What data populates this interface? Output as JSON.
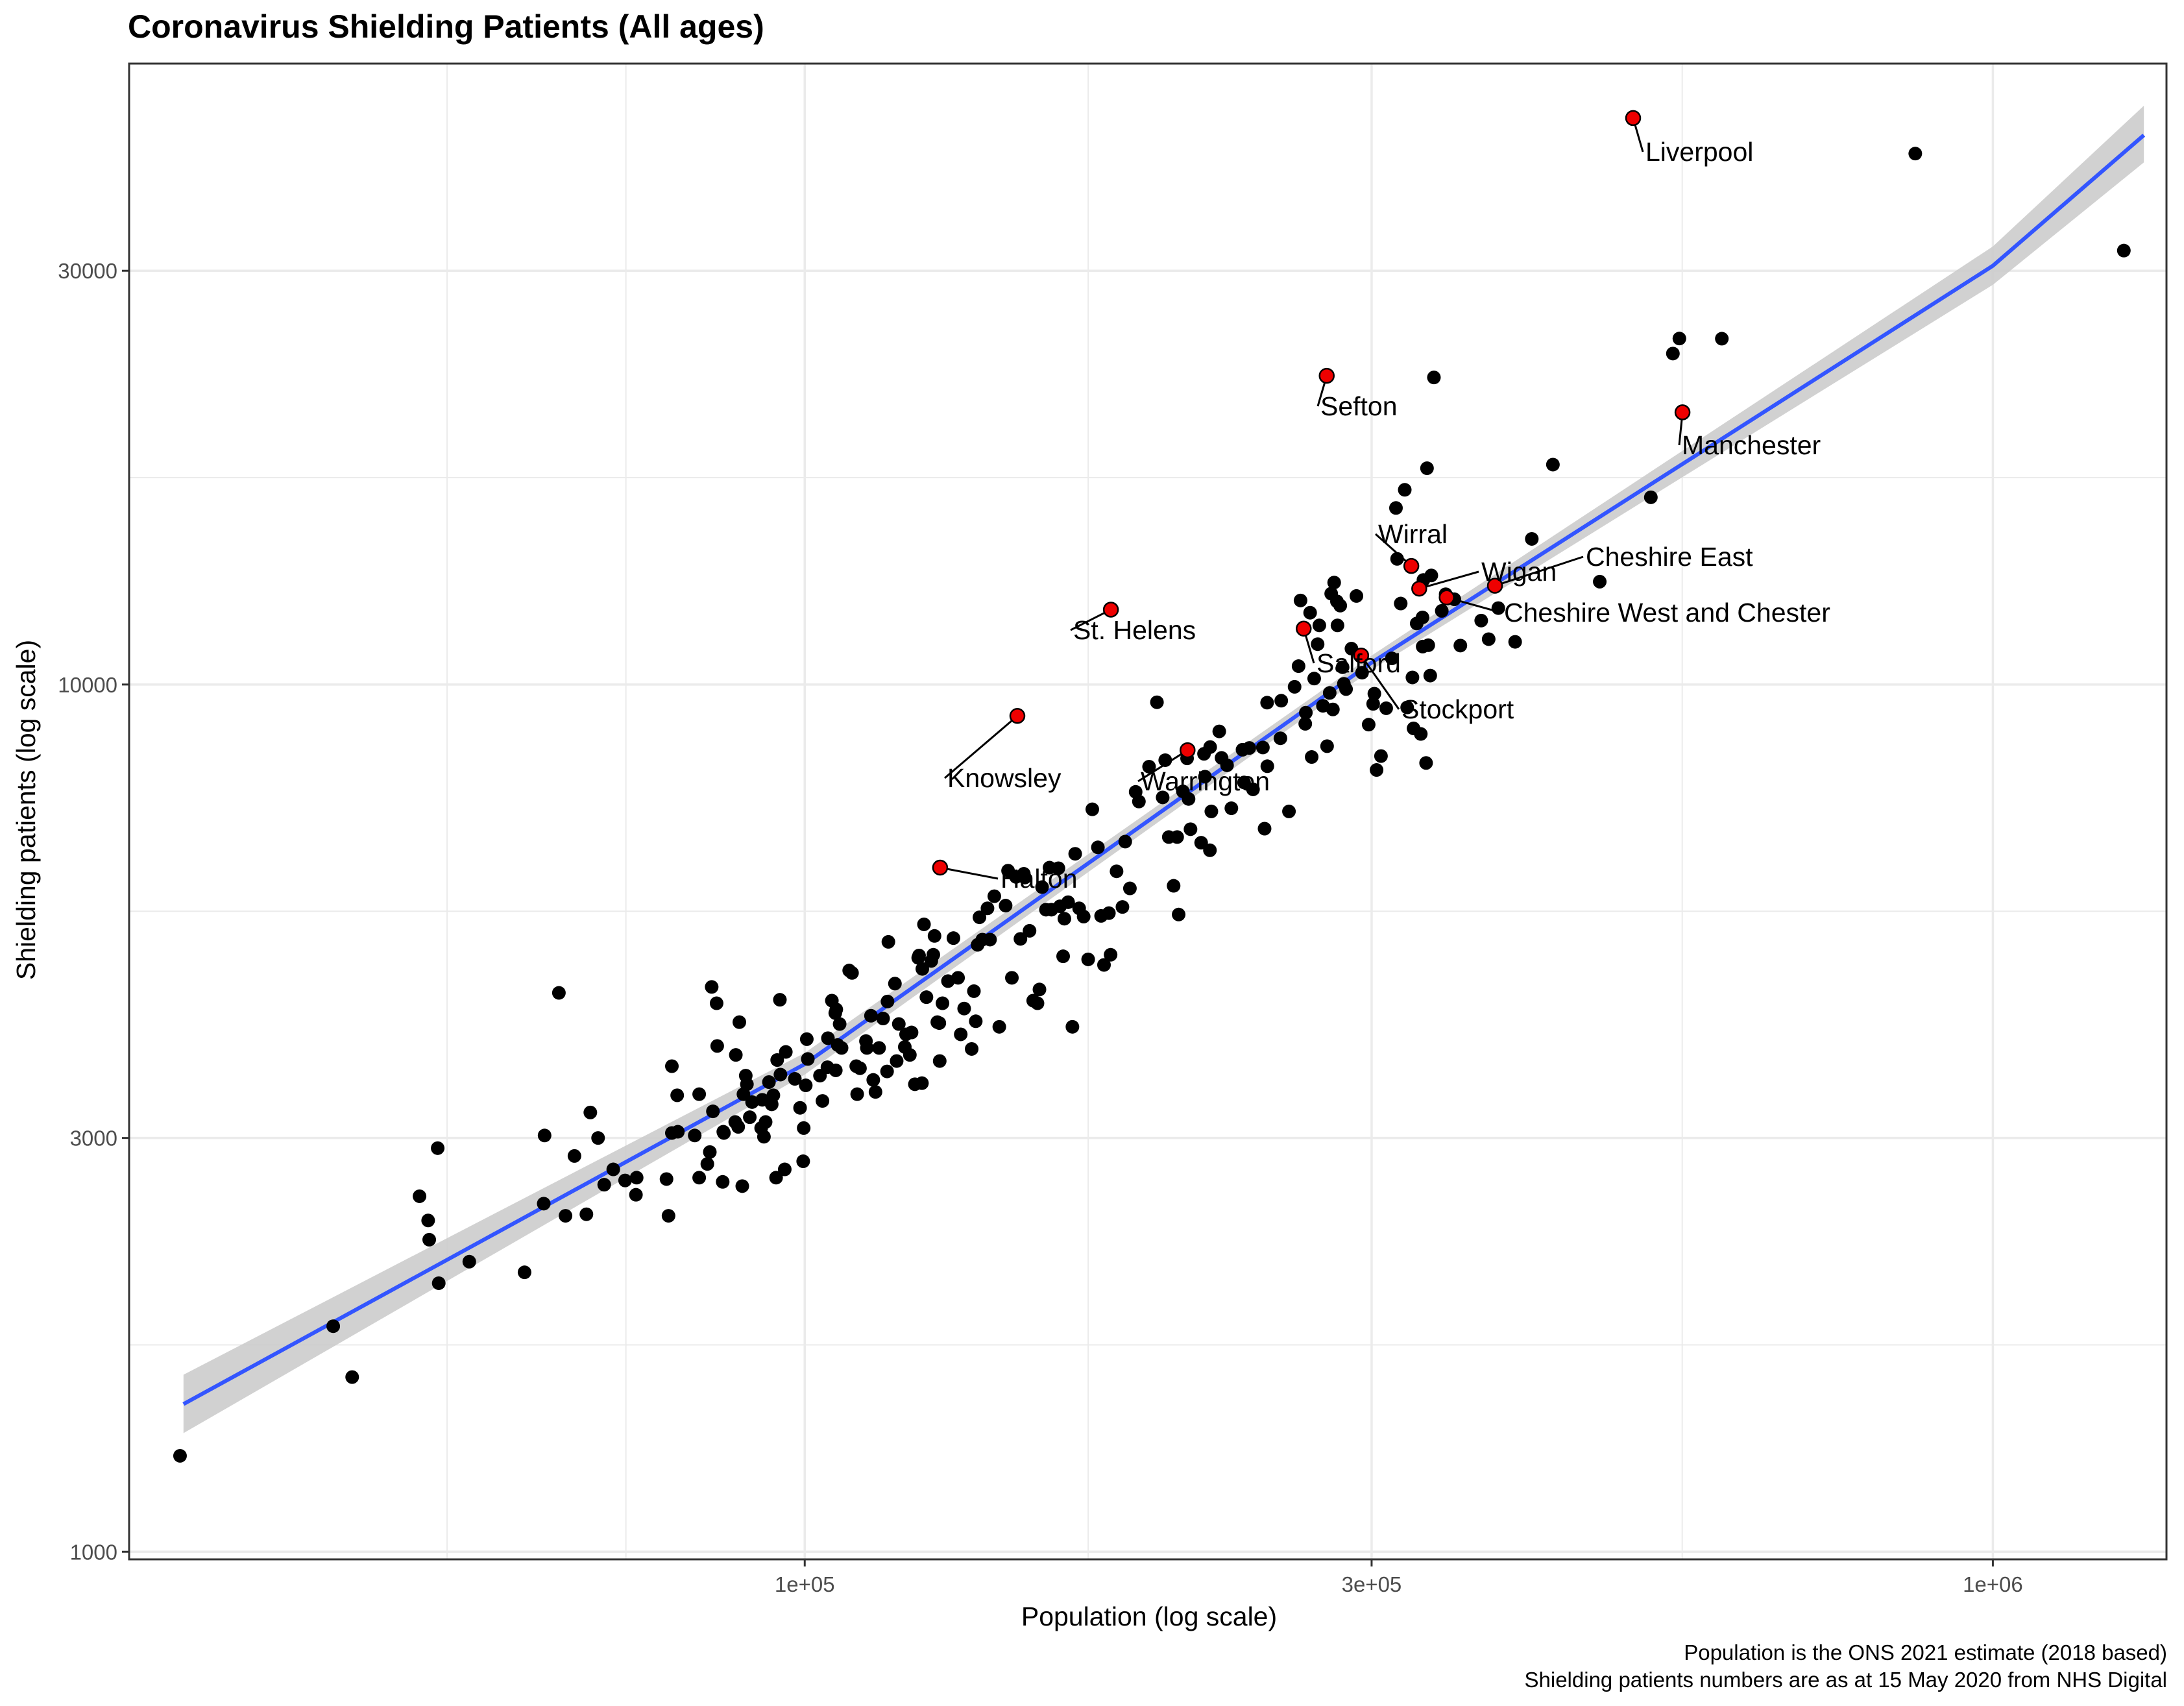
{
  "title": "Coronavirus Shielding Patients (All ages)",
  "caption": {
    "line1": "Population is the ONS 2021 estimate (2018 based)",
    "line2": "Shielding patients numbers are as at 15 May 2020 from NHS Digital"
  },
  "chart_data": {
    "type": "scatter",
    "title": "Coronavirus Shielding Patients (All ages)",
    "xlabel": "Population (log scale)",
    "ylabel": "Shielding patients (log scale)",
    "x_scale": "log10",
    "y_scale": "log10",
    "xlim": [
      27000,
      1400000
    ],
    "ylim": [
      980,
      52000
    ],
    "x_ticks": [
      {
        "value": 100000,
        "label": "1e+05"
      },
      {
        "value": 300000,
        "label": "3e+05"
      },
      {
        "value": 1000000,
        "label": "1e+06"
      }
    ],
    "y_ticks": [
      {
        "value": 1000,
        "label": "1000"
      },
      {
        "value": 3000,
        "label": "3000"
      },
      {
        "value": 10000,
        "label": "10000"
      },
      {
        "value": 30000,
        "label": "30000"
      }
    ],
    "grid": true,
    "legend": "none",
    "colors": {
      "points": "#000000",
      "highlight": "#ee0000",
      "trend": "#3355ff",
      "ribbon": "#cccccc",
      "panel_border": "#333333",
      "grid": "#ebebeb"
    },
    "trend_line": {
      "method": "linear regression on log-log scale with confidence band",
      "points": [
        {
          "x": 30000,
          "y": 1480,
          "lower": 1370,
          "upper": 1600
        },
        {
          "x": 100000,
          "y": 3650,
          "lower": 3550,
          "upper": 3760
        },
        {
          "x": 300000,
          "y": 10600,
          "lower": 10400,
          "upper": 10800
        },
        {
          "x": 1000000,
          "y": 30400,
          "lower": 28900,
          "upper": 32000
        },
        {
          "x": 1340000,
          "y": 43000,
          "lower": 40000,
          "upper": 46500
        }
      ]
    },
    "highlighted": [
      {
        "name": "Liverpool",
        "x": 498000,
        "y": 45000
      },
      {
        "name": "Sefton",
        "x": 275000,
        "y": 22700
      },
      {
        "name": "Manchester",
        "x": 548000,
        "y": 20600
      },
      {
        "name": "Wirral",
        "x": 324000,
        "y": 13700
      },
      {
        "name": "Wigan",
        "x": 329000,
        "y": 12900
      },
      {
        "name": "Cheshire East",
        "x": 381000,
        "y": 13000
      },
      {
        "name": "Cheshire West and Chester",
        "x": 347000,
        "y": 12600
      },
      {
        "name": "St. Helens",
        "x": 181000,
        "y": 12200
      },
      {
        "name": "Salford",
        "x": 263000,
        "y": 11600
      },
      {
        "name": "Stockport",
        "x": 294000,
        "y": 10800
      },
      {
        "name": "Knowsley",
        "x": 151000,
        "y": 9200
      },
      {
        "name": "Warrington",
        "x": 210000,
        "y": 8400
      },
      {
        "name": "Halton",
        "x": 130000,
        "y": 6150
      }
    ],
    "points": [
      [
        29800,
        1290
      ],
      [
        40100,
        1820
      ],
      [
        41600,
        1590
      ],
      [
        47400,
        2570
      ],
      [
        48300,
        2290
      ],
      [
        48200,
        2410
      ],
      [
        49100,
        2920
      ],
      [
        49200,
        2040
      ],
      [
        52200,
        2160
      ],
      [
        58100,
        2100
      ],
      [
        60300,
        2520
      ],
      [
        60400,
        3020
      ],
      [
        62100,
        4410
      ],
      [
        62900,
        2440
      ],
      [
        64000,
        2860
      ],
      [
        66000,
        3210
      ],
      [
        65500,
        2450
      ],
      [
        67000,
        3000
      ],
      [
        67800,
        2650
      ],
      [
        69000,
        2760
      ],
      [
        70600,
        2680
      ],
      [
        72200,
        2700
      ],
      [
        72100,
        2580
      ],
      [
        76500,
        2690
      ],
      [
        76800,
        2440
      ],
      [
        77300,
        3040
      ],
      [
        77300,
        3630
      ],
      [
        78100,
        3360
      ],
      [
        78200,
        3050
      ],
      [
        80800,
        3020
      ],
      [
        81500,
        2700
      ],
      [
        81500,
        3370
      ],
      [
        82800,
        2800
      ],
      [
        83200,
        2890
      ],
      [
        83500,
        4480
      ],
      [
        84300,
        4290
      ],
      [
        83700,
        3220
      ],
      [
        85400,
        3050
      ],
      [
        84400,
        3830
      ],
      [
        85300,
        2670
      ],
      [
        85500,
        3040
      ],
      [
        87400,
        3130
      ],
      [
        87500,
        3740
      ],
      [
        87900,
        3090
      ],
      [
        88800,
        3370
      ],
      [
        88100,
        4080
      ],
      [
        88600,
        2640
      ],
      [
        89400,
        3460
      ],
      [
        89900,
        3170
      ],
      [
        89200,
        3540
      ],
      [
        90300,
        3300
      ],
      [
        91900,
        3080
      ],
      [
        92400,
        3010
      ],
      [
        92700,
        3130
      ],
      [
        92100,
        3320
      ],
      [
        93300,
        3480
      ],
      [
        93800,
        3280
      ],
      [
        94100,
        3360
      ],
      [
        94800,
        3690
      ],
      [
        94600,
        2700
      ],
      [
        95300,
        4330
      ],
      [
        95400,
        3550
      ],
      [
        96400,
        3770
      ],
      [
        96200,
        2760
      ],
      [
        98100,
        3510
      ],
      [
        99100,
        3250
      ],
      [
        99800,
        3080
      ],
      [
        99700,
        2820
      ],
      [
        100200,
        3450
      ],
      [
        100400,
        3900
      ],
      [
        100600,
        3700
      ],
      [
        103000,
        3540
      ],
      [
        103500,
        3310
      ],
      [
        104500,
        3620
      ],
      [
        104600,
        3910
      ],
      [
        105400,
        4320
      ],
      [
        106200,
        3590
      ],
      [
        106600,
        3840
      ],
      [
        107400,
        3810
      ],
      [
        106100,
        4180
      ],
      [
        106300,
        4220
      ],
      [
        107000,
        4060
      ],
      [
        109000,
        4680
      ],
      [
        109600,
        4650
      ],
      [
        110500,
        3630
      ],
      [
        111300,
        3610
      ],
      [
        110700,
        3370
      ],
      [
        112600,
        3880
      ],
      [
        112800,
        3810
      ],
      [
        113700,
        4150
      ],
      [
        114200,
        3500
      ],
      [
        114700,
        3390
      ],
      [
        115500,
        3810
      ],
      [
        116400,
        4120
      ],
      [
        117300,
        3580
      ],
      [
        117600,
        5050
      ],
      [
        117400,
        4310
      ],
      [
        119100,
        4520
      ],
      [
        119500,
        3680
      ],
      [
        121400,
        3820
      ],
      [
        120000,
        4060
      ],
      [
        121700,
        3950
      ],
      [
        122600,
        3740
      ],
      [
        123000,
        3970
      ],
      [
        123800,
        3460
      ],
      [
        124600,
        4840
      ],
      [
        124800,
        4870
      ],
      [
        125600,
        4700
      ],
      [
        126000,
        5290
      ],
      [
        125500,
        3470
      ],
      [
        126600,
        4360
      ],
      [
        127800,
        4800
      ],
      [
        128300,
        4880
      ],
      [
        128600,
        5130
      ],
      [
        129300,
        4080
      ],
      [
        129800,
        4070
      ],
      [
        129900,
        3680
      ],
      [
        130600,
        4290
      ],
      [
        132000,
        4550
      ],
      [
        133400,
        5100
      ],
      [
        134600,
        4590
      ],
      [
        135300,
        3950
      ],
      [
        136200,
        4230
      ],
      [
        138800,
        4430
      ],
      [
        139800,
        5010
      ],
      [
        139300,
        4090
      ],
      [
        138200,
        3800
      ],
      [
        140300,
        5390
      ],
      [
        141100,
        5080
      ],
      [
        142500,
        5520
      ],
      [
        143200,
        5080
      ],
      [
        144400,
        5700
      ],
      [
        145800,
        4030
      ],
      [
        147600,
        5560
      ],
      [
        148300,
        6100
      ],
      [
        149400,
        4590
      ],
      [
        151900,
        5090
      ],
      [
        150600,
        6000
      ],
      [
        152900,
        6050
      ],
      [
        153200,
        5990
      ],
      [
        154600,
        5200
      ],
      [
        155700,
        4320
      ],
      [
        157000,
        4290
      ],
      [
        157600,
        4450
      ],
      [
        158400,
        5840
      ],
      [
        159600,
        5500
      ],
      [
        160700,
        6150
      ],
      [
        161300,
        5500
      ],
      [
        163500,
        6140
      ],
      [
        164000,
        5550
      ],
      [
        165400,
        5370
      ],
      [
        165000,
        4860
      ],
      [
        166600,
        5610
      ],
      [
        168000,
        4030
      ],
      [
        168900,
        6380
      ],
      [
        170200,
        5520
      ],
      [
        171700,
        5400
      ],
      [
        173200,
        4820
      ],
      [
        174600,
        7180
      ],
      [
        176500,
        6490
      ],
      [
        177600,
        5410
      ],
      [
        178600,
        4750
      ],
      [
        180300,
        5450
      ],
      [
        180900,
        4880
      ],
      [
        183000,
        6090
      ],
      [
        185100,
        5540
      ],
      [
        186100,
        6590
      ],
      [
        187800,
        5820
      ],
      [
        189900,
        7520
      ],
      [
        191100,
        7330
      ],
      [
        194900,
        8040
      ],
      [
        197900,
        9540
      ],
      [
        200100,
        7410
      ],
      [
        201100,
        8180
      ],
      [
        202500,
        6670
      ],
      [
        204400,
        5860
      ],
      [
        205800,
        6670
      ],
      [
        206400,
        5430
      ],
      [
        208100,
        7530
      ],
      [
        209800,
        8220
      ],
      [
        210400,
        7380
      ],
      [
        211200,
        6810
      ],
      [
        215600,
        6570
      ],
      [
        216800,
        8320
      ],
      [
        217200,
        7830
      ],
      [
        219400,
        8470
      ],
      [
        219300,
        6440
      ],
      [
        219900,
        7140
      ],
      [
        223300,
        8830
      ],
      [
        224300,
        8230
      ],
      [
        226700,
        8070
      ],
      [
        228600,
        7200
      ],
      [
        233600,
        8410
      ],
      [
        234300,
        7710
      ],
      [
        236700,
        8450
      ],
      [
        238400,
        7570
      ],
      [
        243000,
        8460
      ],
      [
        243800,
        6820
      ],
      [
        245100,
        8050
      ],
      [
        245000,
        9530
      ],
      [
        251400,
        8670
      ],
      [
        251800,
        9580
      ],
      [
        255600,
        7140
      ],
      [
        258400,
        9940
      ],
      [
        260400,
        10500
      ],
      [
        261400,
        12500
      ],
      [
        263800,
        9010
      ],
      [
        264100,
        9280
      ],
      [
        266300,
        12100
      ],
      [
        267100,
        8250
      ],
      [
        268400,
        10160
      ],
      [
        270200,
        11130
      ],
      [
        271100,
        11700
      ],
      [
        273000,
        9450
      ],
      [
        275200,
        8490
      ],
      [
        276600,
        9780
      ],
      [
        277400,
        12730
      ],
      [
        278300,
        9360
      ],
      [
        279000,
        13110
      ],
      [
        280500,
        12470
      ],
      [
        280800,
        11700
      ],
      [
        282300,
        12330
      ],
      [
        283600,
        10470
      ],
      [
        284300,
        10020
      ],
      [
        285500,
        9880
      ],
      [
        288500,
        11000
      ],
      [
        291300,
        12650
      ],
      [
        294500,
        10320
      ],
      [
        298300,
        8990
      ],
      [
        300900,
        9500
      ],
      [
        301600,
        9760
      ],
      [
        302900,
        7970
      ],
      [
        305500,
        8270
      ],
      [
        308600,
        9390
      ],
      [
        312000,
        10720
      ],
      [
        314500,
        15980
      ],
      [
        315200,
        13960
      ],
      [
        317400,
        12400
      ],
      [
        319900,
        16770
      ],
      [
        321400,
        9410
      ],
      [
        324700,
        10190
      ],
      [
        325400,
        8900
      ],
      [
        327400,
        11760
      ],
      [
        330000,
        8770
      ],
      [
        331100,
        11950
      ],
      [
        331200,
        11060
      ],
      [
        331700,
        13200
      ],
      [
        333400,
        8120
      ],
      [
        334000,
        17760
      ],
      [
        334800,
        11100
      ],
      [
        336100,
        10240
      ],
      [
        336800,
        13360
      ],
      [
        338500,
        22600
      ],
      [
        343700,
        12160
      ],
      [
        346300,
        12710
      ],
      [
        352200,
        12540
      ],
      [
        356300,
        11090
      ],
      [
        371000,
        11850
      ],
      [
        376400,
        11280
      ],
      [
        383500,
        12250
      ],
      [
        396200,
        11200
      ],
      [
        409200,
        14720
      ],
      [
        426300,
        17930
      ],
      [
        466800,
        13140
      ],
      [
        515400,
        16440
      ],
      [
        537900,
        24080
      ],
      [
        544700,
        25060
      ],
      [
        591400,
        25050
      ],
      [
        860400,
        40950
      ],
      [
        1289000,
        31650
      ]
    ]
  },
  "labels": [
    {
      "key": "liverpool",
      "text": "Liverpool"
    },
    {
      "key": "sefton",
      "text": "Sefton"
    },
    {
      "key": "manchester",
      "text": "Manchester"
    },
    {
      "key": "wirral",
      "text": "Wirral"
    },
    {
      "key": "wigan",
      "text": "Wigan"
    },
    {
      "key": "cheshire-east",
      "text": "Cheshire East"
    },
    {
      "key": "cheshire-west",
      "text": "Cheshire West and Chester"
    },
    {
      "key": "st-helens",
      "text": "St. Helens"
    },
    {
      "key": "salford",
      "text": "Salford"
    },
    {
      "key": "stockport",
      "text": "Stockport"
    },
    {
      "key": "knowsley",
      "text": "Knowsley"
    },
    {
      "key": "warrington",
      "text": "Warrington"
    },
    {
      "key": "halton",
      "text": "Halton"
    }
  ]
}
